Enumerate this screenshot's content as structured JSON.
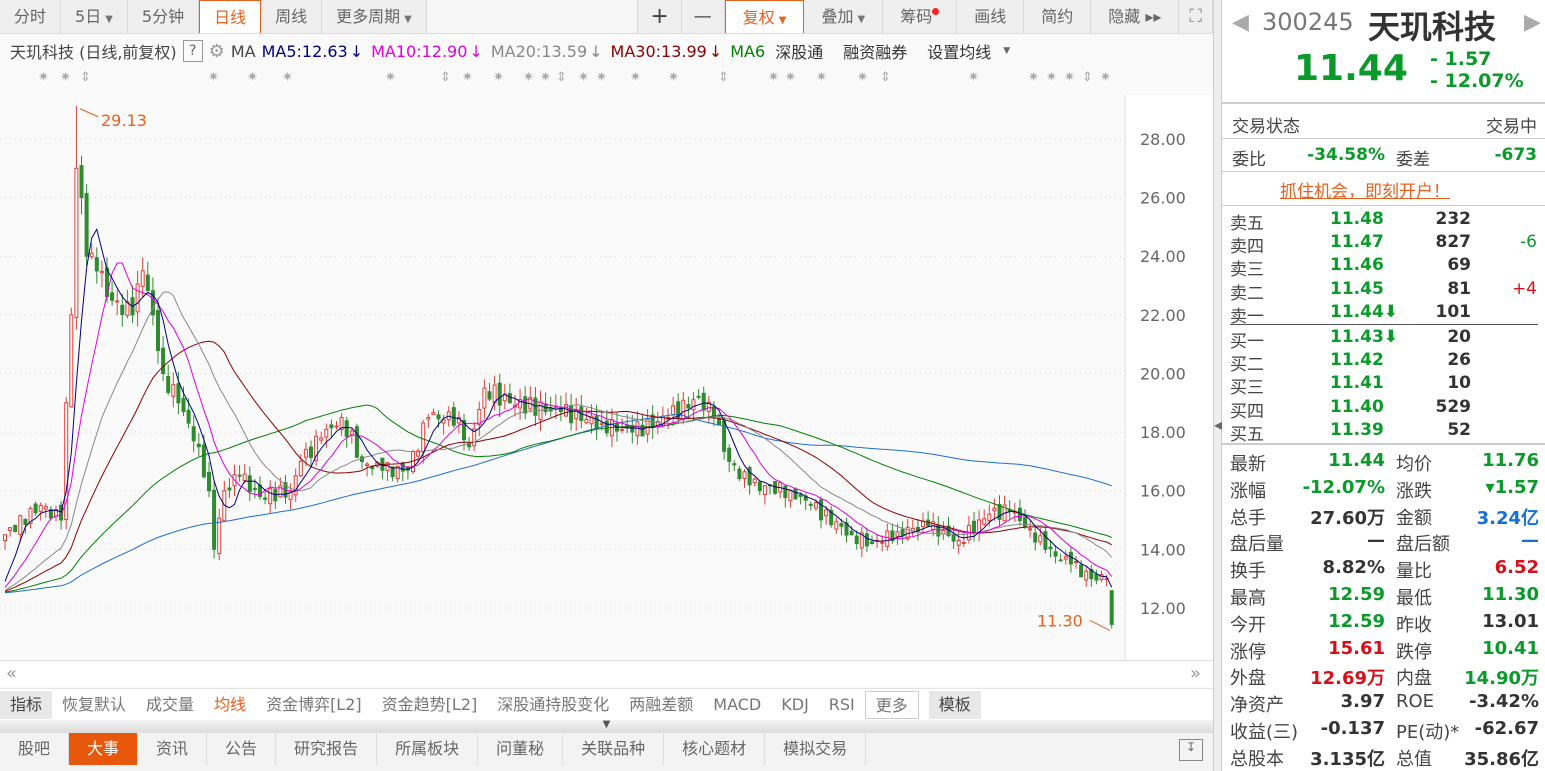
{
  "toolbar": {
    "periods": [
      {
        "label": "分时"
      },
      {
        "label": "5日",
        "caret": true
      },
      {
        "label": "5分钟"
      },
      {
        "label": "日线",
        "active": true
      },
      {
        "label": "周线"
      },
      {
        "label": "更多周期",
        "caret": true
      }
    ],
    "zoom_in": "+",
    "zoom_out": "—",
    "tools": [
      {
        "label": "复权",
        "caret": true,
        "active": true
      },
      {
        "label": "叠加",
        "caret": true
      },
      {
        "label": "筹码",
        "dot": true
      },
      {
        "label": "画线"
      },
      {
        "label": "简约"
      },
      {
        "label": "隐藏 ▸▸"
      }
    ],
    "fullscreen_icon": "expand-icon"
  },
  "legend": {
    "title": "天玑科技 (日线,前复权)",
    "help": "?",
    "ma_label": "MA",
    "ma": [
      {
        "label": "MA5:12.63",
        "color": "#000080",
        "arrow": "↓"
      },
      {
        "label": "MA10:12.90",
        "color": "#e000e0",
        "arrow": "↓"
      },
      {
        "label": "MA20:13.59",
        "color": "#888888",
        "arrow": "↓"
      },
      {
        "label": "MA30:13.99",
        "color": "#8b0000",
        "arrow": "↓"
      },
      {
        "label": "MA6",
        "color": "#008000"
      }
    ],
    "links": [
      "深股通",
      "融资融券",
      "设置均线"
    ]
  },
  "chart_data": {
    "type": "candlestick",
    "y_ticks": [
      "28.00",
      "26.00",
      "24.00",
      "22.00",
      "20.00",
      "18.00",
      "16.00",
      "14.00",
      "12.00"
    ],
    "ylim": [
      11.0,
      29.5
    ],
    "max_label": "29.13",
    "min_label": "11.30",
    "close_waypoints": [
      [
        0,
        14.5
      ],
      [
        7,
        15.5
      ],
      [
        11,
        15
      ],
      [
        12,
        19
      ],
      [
        13,
        22
      ],
      [
        14,
        27
      ],
      [
        15,
        26
      ],
      [
        16,
        24
      ],
      [
        18,
        23.5
      ],
      [
        21,
        22.5
      ],
      [
        25,
        22
      ],
      [
        27,
        23.5
      ],
      [
        29,
        22
      ],
      [
        31,
        20
      ],
      [
        34,
        19
      ],
      [
        38,
        17.5
      ],
      [
        40,
        16
      ],
      [
        41,
        14
      ],
      [
        43,
        16
      ],
      [
        46,
        16.5
      ],
      [
        50,
        15.8
      ],
      [
        56,
        16
      ],
      [
        58,
        17
      ],
      [
        62,
        17.8
      ],
      [
        66,
        18.5
      ],
      [
        70,
        17
      ],
      [
        74,
        16.7
      ],
      [
        79,
        16.7
      ],
      [
        83,
        18.5
      ],
      [
        89,
        18.5
      ],
      [
        91,
        17.5
      ],
      [
        94,
        19.5
      ],
      [
        99,
        19
      ],
      [
        109,
        18.7
      ],
      [
        117,
        18.3
      ],
      [
        123,
        18
      ],
      [
        130,
        18.5
      ],
      [
        136,
        19.2
      ],
      [
        139,
        18.5
      ],
      [
        142,
        17
      ],
      [
        146,
        16.2
      ],
      [
        154,
        16
      ],
      [
        158,
        15.5
      ],
      [
        166,
        14.5
      ],
      [
        170,
        14.2
      ],
      [
        175,
        14.6
      ],
      [
        181,
        14.8
      ],
      [
        187,
        14.3
      ],
      [
        193,
        15.2
      ],
      [
        197,
        15.3
      ],
      [
        201,
        14.7
      ],
      [
        204,
        14
      ],
      [
        209,
        13.5
      ],
      [
        213,
        13
      ],
      [
        216,
        13.01
      ],
      [
        217,
        11.44
      ]
    ],
    "last_open": 12.59,
    "last_high": 12.59,
    "last_low": 11.3,
    "colors": {
      "up": "#e0403a",
      "down": "#2e8b2e",
      "ma5": "#000080",
      "ma10": "#e000e0",
      "ma20": "#888888",
      "ma30": "#8b0000",
      "ma60": "#008000",
      "ma120": "#1e6fcf"
    }
  },
  "indicators": {
    "items": [
      {
        "label": "指标",
        "style": "box"
      },
      {
        "label": "恢复默认"
      },
      {
        "label": "成交量"
      },
      {
        "label": "均线",
        "active": true
      },
      {
        "label": "资金博弈[L2]"
      },
      {
        "label": "资金趋势[L2]"
      },
      {
        "label": "深股通持股变化"
      },
      {
        "label": "两融差额"
      },
      {
        "label": "MACD"
      },
      {
        "label": "KDJ"
      },
      {
        "label": "RSI"
      },
      {
        "label": "更多",
        "style": "outline"
      },
      {
        "label": "模板",
        "style": "box"
      }
    ]
  },
  "bottom_tabs": [
    {
      "label": "股吧"
    },
    {
      "label": "大事",
      "active": true
    },
    {
      "label": "资讯"
    },
    {
      "label": "公告"
    },
    {
      "label": "研究报告"
    },
    {
      "label": "所属板块"
    },
    {
      "label": "问董秘"
    },
    {
      "label": "关联品种"
    },
    {
      "label": "核心题材"
    },
    {
      "label": "模拟交易"
    }
  ],
  "quote": {
    "code": "300245",
    "name": "天玑科技",
    "price": "11.44",
    "change": "- 1.57",
    "change_pct": "- 12.07%",
    "status_label": "交易状态",
    "status_value": "交易中",
    "wb_label": "委比",
    "wb_value": "-34.58%",
    "wc_label": "委差",
    "wc_value": "-673",
    "promo": "抓住机会，即刻开户！",
    "asks": [
      {
        "label": "卖五",
        "price": "11.48",
        "vol": "232",
        "chg": ""
      },
      {
        "label": "卖四",
        "price": "11.47",
        "vol": "827",
        "chg": "-6"
      },
      {
        "label": "卖三",
        "price": "11.46",
        "vol": "69",
        "chg": ""
      },
      {
        "label": "卖二",
        "price": "11.45",
        "vol": "81",
        "chg": "+4"
      },
      {
        "label": "卖一",
        "price": "11.44⬇",
        "vol": "101",
        "chg": ""
      }
    ],
    "bids": [
      {
        "label": "买一",
        "price": "11.43⬇",
        "vol": "20"
      },
      {
        "label": "买二",
        "price": "11.42",
        "vol": "26"
      },
      {
        "label": "买三",
        "price": "11.41",
        "vol": "10"
      },
      {
        "label": "买四",
        "price": "11.40",
        "vol": "529"
      },
      {
        "label": "买五",
        "price": "11.39",
        "vol": "52"
      }
    ],
    "stats": [
      [
        {
          "l": "最新",
          "v": "11.44",
          "c": "g"
        },
        {
          "l": "均价",
          "v": "11.76",
          "c": "g"
        }
      ],
      [
        {
          "l": "涨幅",
          "v": "-12.07%",
          "c": "g"
        },
        {
          "l": "涨跌",
          "v": "▾1.57",
          "c": "g"
        }
      ],
      [
        {
          "l": "总手",
          "v": "27.60万",
          "c": "k"
        },
        {
          "l": "金额",
          "v": "3.24亿",
          "c": "b"
        }
      ],
      [
        {
          "l": "盘后量",
          "v": "—",
          "c": "k"
        },
        {
          "l": "盘后额",
          "v": "—",
          "c": "b"
        }
      ],
      [
        {
          "l": "换手",
          "v": "8.82%",
          "c": "k"
        },
        {
          "l": "量比",
          "v": "6.52",
          "c": "r"
        }
      ],
      [
        {
          "l": "最高",
          "v": "12.59",
          "c": "g"
        },
        {
          "l": "最低",
          "v": "11.30",
          "c": "g"
        }
      ],
      [
        {
          "l": "今开",
          "v": "12.59",
          "c": "g"
        },
        {
          "l": "昨收",
          "v": "13.01",
          "c": "k"
        }
      ],
      [
        {
          "l": "涨停",
          "v": "15.61",
          "c": "r"
        },
        {
          "l": "跌停",
          "v": "10.41",
          "c": "g"
        }
      ],
      [
        {
          "l": "外盘",
          "v": "12.69万",
          "c": "r"
        },
        {
          "l": "内盘",
          "v": "14.90万",
          "c": "g"
        }
      ],
      [
        {
          "l": "净资产",
          "v": "3.97",
          "c": "k"
        },
        {
          "l": "ROE",
          "v": "-3.42%",
          "c": "k"
        }
      ],
      [
        {
          "l": "收益(三)",
          "v": "-0.137",
          "c": "k"
        },
        {
          "l": "PE(动)*",
          "v": "-62.67",
          "c": "k"
        }
      ],
      [
        {
          "l": "总股本",
          "v": "3.135亿",
          "c": "k"
        },
        {
          "l": "总值",
          "v": "35.86亿",
          "c": "k"
        }
      ]
    ]
  }
}
